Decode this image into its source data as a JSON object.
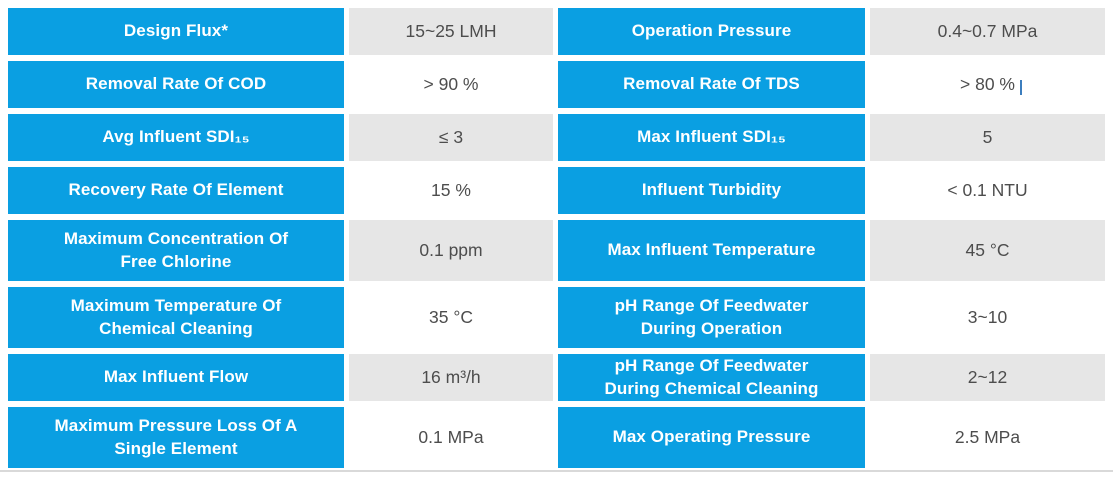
{
  "colors": {
    "label_background": "#0A9FE2",
    "label_text": "#FFFFFF",
    "value_text": "#4D4D4D",
    "value_background_alt": "#E6E6E6",
    "value_background": "#FFFFFF",
    "bottom_divider": "#D9D9D9"
  },
  "table": {
    "rows": [
      {
        "left_label": "Design Flux*",
        "left_value": "15~25 LMH",
        "right_label": "Operation Pressure",
        "right_value": "0.4~0.7 MPa"
      },
      {
        "left_label": "Removal Rate Of COD",
        "left_value": "> 90 %",
        "right_label": "Removal Rate Of TDS",
        "right_value": "> 80 %"
      },
      {
        "left_label": "Avg Influent SDI₁₅",
        "left_value": "≤ 3",
        "right_label": "Max Influent SDI₁₅",
        "right_value": "5"
      },
      {
        "left_label": "Recovery Rate Of Element",
        "left_value": "15 %",
        "right_label": "Influent Turbidity",
        "right_value": "< 0.1 NTU"
      },
      {
        "left_label": "Maximum Concentration Of\nFree Chlorine",
        "left_value": "0.1 ppm",
        "right_label": "Max Influent Temperature",
        "right_value": "45 °C"
      },
      {
        "left_label": "Maximum Temperature Of\nChemical Cleaning",
        "left_value": "35 °C",
        "right_label": "pH Range Of Feedwater\nDuring Operation",
        "right_value": "3~10"
      },
      {
        "left_label": "Max Influent Flow",
        "left_value": "16 m³/h",
        "right_label": "pH Range Of Feedwater\nDuring Chemical Cleaning",
        "right_value": "2~12"
      },
      {
        "left_label": "Maximum Pressure Loss Of A\nSingle Element",
        "left_value": "0.1 MPa",
        "right_label": "Max Operating Pressure",
        "right_value": "2.5 MPa"
      }
    ]
  }
}
